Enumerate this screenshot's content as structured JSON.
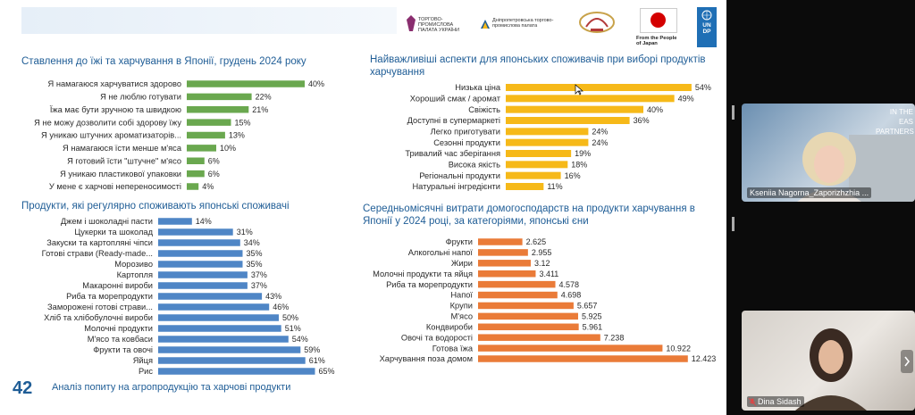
{
  "footer": {
    "page_number": "42",
    "text": "Аналіз попиту на агропродукцію та харчові продукти"
  },
  "logos": {
    "chamber_ua": "ТОРГОВО-ПРОМИСЛОВА ПАЛАТА УКРАЇНИ",
    "chamber_dnipro": "Дніпропетровська торгово-промислова палата",
    "from_japan": "From the People of Japan",
    "undp": "UNDP"
  },
  "colors": {
    "green": "#6aa84f",
    "yellow": "#f6b919",
    "blue": "#4f86c6",
    "orange": "#ea7b38",
    "title": "#1f5d96"
  },
  "participants": [
    {
      "name": "Kseniia Nagorna_Zaporizhzhia ...",
      "bg_text": "IN THE EAS PARTNERS"
    },
    {
      "name": "Dina Sidash"
    }
  ],
  "chart_data": [
    {
      "type": "bar",
      "orientation": "horizontal",
      "color": "#6aa84f",
      "title": "Ставлення до їжі та харчування в Японії, грудень 2024 року",
      "categories": [
        "Я намагаюся харчуватися здорово",
        "Я не люблю готувати",
        "Їжа має бути зручною та швидкою",
        "Я не можу дозволити собі здорову їжу",
        "Я уникаю штучних ароматизаторів...",
        "Я намагаюся їсти менше м'яса",
        "Я готовий їсти \"штучне\" м'ясо",
        "Я уникаю пластикової упаковки",
        "У мене є харчові непереносимості"
      ],
      "values": [
        40,
        22,
        21,
        15,
        13,
        10,
        6,
        6,
        4
      ],
      "labels": [
        "40%",
        "22%",
        "21%",
        "15%",
        "13%",
        "10%",
        "6%",
        "6%",
        "4%"
      ]
    },
    {
      "type": "bar",
      "orientation": "horizontal",
      "color": "#f6b919",
      "title": "Найважливіші аспекти для японських споживачів при виборі продуктів харчування",
      "categories": [
        "Низька ціна",
        "Хороший смак / аромат",
        "Свіжість",
        "Доступні в супермаркеті",
        "Легко приготувати",
        "Сезонні продукти",
        "Тривалий час зберігання",
        "Висока якість",
        "Регіональні продукти",
        "Натуральні інгредієнти"
      ],
      "values": [
        54,
        49,
        40,
        36,
        24,
        24,
        19,
        18,
        16,
        11
      ],
      "labels": [
        "54%",
        "49%",
        "40%",
        "36%",
        "24%",
        "24%",
        "19%",
        "18%",
        "16%",
        "11%"
      ]
    },
    {
      "type": "bar",
      "orientation": "horizontal",
      "color": "#4f86c6",
      "title": "Продукти, які регулярно споживають японські споживачі",
      "categories": [
        "Джем і шоколадні пасти",
        "Цукерки та шоколад",
        "Закуски та картопляні чіпси",
        "Готові страви (Ready-made...",
        "Морозиво",
        "Картопля",
        "Макаронні вироби",
        "Риба та морепродукти",
        "Заморожені готові страви...",
        "Хліб та хлібобулочні вироби",
        "Молочні продукти",
        "М'ясо та ковбаси",
        "Фрукти та овочі",
        "Яйця",
        "Рис"
      ],
      "values": [
        14,
        31,
        34,
        35,
        35,
        37,
        37,
        43,
        46,
        50,
        51,
        54,
        59,
        61,
        65
      ],
      "labels": [
        "14%",
        "31%",
        "34%",
        "35%",
        "35%",
        "37%",
        "37%",
        "43%",
        "46%",
        "50%",
        "51%",
        "54%",
        "59%",
        "61%",
        "65%"
      ]
    },
    {
      "type": "bar",
      "orientation": "horizontal",
      "color": "#ea7b38",
      "title": "Середньомісячні витрати домогосподарств на продукти харчування в Японії у 2024 році, за категоріями, японські єни",
      "categories": [
        "Фрукти",
        "Алкогольні напої",
        "Жири",
        "Молочні продукти та яйця",
        "Риба та морепродукти",
        "Напої",
        "Крупи",
        "М'ясо",
        "Кондвироби",
        "Овочі та водорості",
        "Готова їжа",
        "Харчування поза домом"
      ],
      "values": [
        2.625,
        2.955,
        3.12,
        3.411,
        4.578,
        4.698,
        5.657,
        5.925,
        5.961,
        7.238,
        10.922,
        12.423
      ],
      "labels": [
        "2.625",
        "2.955",
        "3.12",
        "3.411",
        "4.578",
        "4.698",
        "5.657",
        "5.925",
        "5.961",
        "7.238",
        "10.922",
        "12.423"
      ]
    }
  ]
}
